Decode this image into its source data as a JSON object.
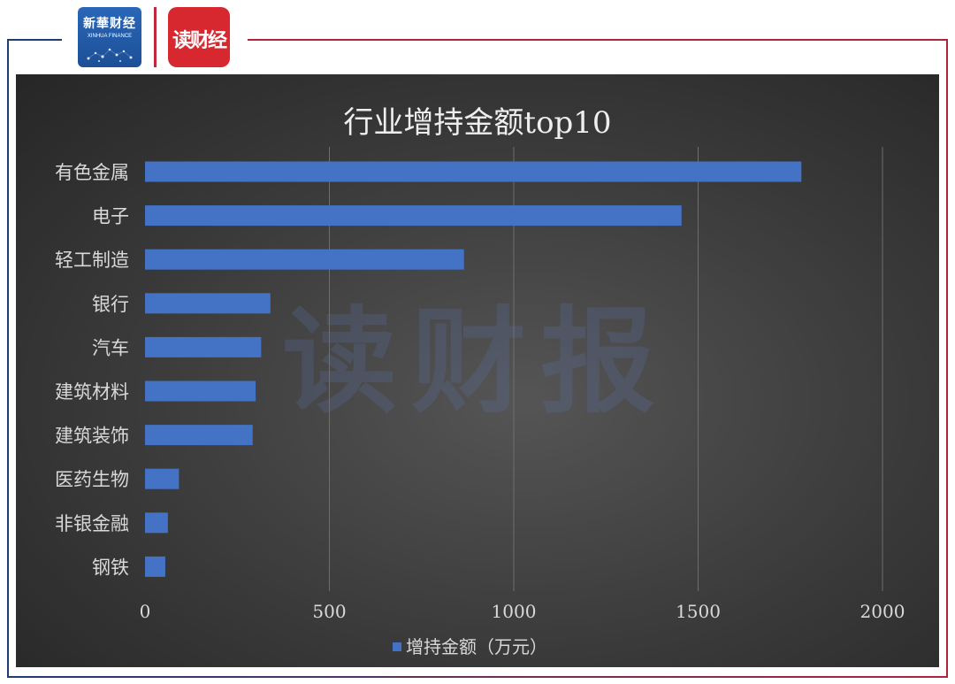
{
  "header": {
    "xinhua_logo_text": "新華财经",
    "xinhua_logo_sub": "XINHUA FINANCE",
    "dubao_logo_text": "读财经"
  },
  "watermark": "读财报",
  "colors": {
    "bar": "#4472c4",
    "background": "#3a3a3a",
    "text": "#d9d9d9",
    "frame_left": "#1f3b7a",
    "frame_right": "#b0243a"
  },
  "chart_data": {
    "type": "bar",
    "orientation": "horizontal",
    "title": "行业增持金额top10",
    "categories": [
      "有色金属",
      "电子",
      "轻工制造",
      "银行",
      "汽车",
      "建筑材料",
      "建筑装饰",
      "医药生物",
      "非银金融",
      "钢铁"
    ],
    "series": [
      {
        "name": "增持金额（万元）",
        "values": [
          1780,
          1455,
          865,
          340,
          315,
          300,
          292,
          92,
          62,
          55
        ]
      }
    ],
    "xlim": [
      0,
      2000
    ],
    "xticks": [
      "0",
      "500",
      "1000",
      "1500",
      "2000"
    ],
    "grid": true,
    "legend_position": "bottom"
  }
}
